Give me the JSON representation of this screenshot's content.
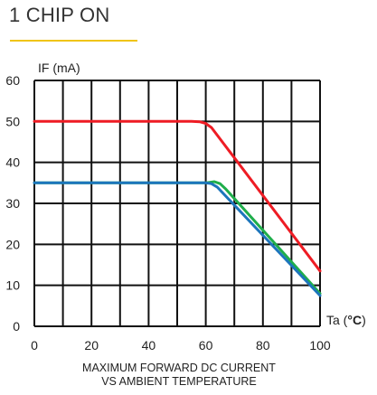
{
  "header": {
    "title": "1 CHIP ON"
  },
  "caption": {
    "line1": "MAXIMUM FORWARD DC CURRENT",
    "line2": "VS AMBIENT TEMPERATURE"
  },
  "colors": {
    "title_underline": "#f0c419",
    "grid": "#111111",
    "red": "#ee1c24",
    "green": "#1fae4b",
    "blue": "#1c75bc"
  },
  "chart_data": {
    "type": "line",
    "ylabel": "IF (mA)",
    "xlabel_prefix": "Ta (",
    "xlabel_unit": "°C",
    "xlabel_suffix": ")",
    "xlim": [
      0,
      100
    ],
    "ylim": [
      0,
      60
    ],
    "grid": true,
    "xticks": [
      0,
      10,
      20,
      30,
      40,
      50,
      60,
      70,
      80,
      90,
      100
    ],
    "yticks": [
      0,
      10,
      20,
      30,
      40,
      50,
      60
    ],
    "xtick_labels": [
      "0",
      "20",
      "40",
      "60",
      "80",
      "100"
    ],
    "xtick_label_values": [
      0,
      20,
      40,
      60,
      80,
      100
    ],
    "ytick_labels": [
      "0",
      "10",
      "20",
      "30",
      "40",
      "50",
      "60"
    ],
    "series": [
      {
        "color": "red",
        "x": [
          0,
          55,
          58,
          60,
          62,
          100
        ],
        "y": [
          50,
          50,
          49.9,
          49.5,
          48.5,
          13.5
        ]
      },
      {
        "color": "green",
        "x": [
          0,
          60,
          63,
          65,
          67,
          100
        ],
        "y": [
          35,
          35,
          35.3,
          34.8,
          33.5,
          8
        ]
      },
      {
        "color": "blue",
        "x": [
          0,
          58,
          60,
          62,
          64,
          100
        ],
        "y": [
          35,
          35,
          35,
          34.8,
          34,
          7.5
        ]
      }
    ]
  }
}
